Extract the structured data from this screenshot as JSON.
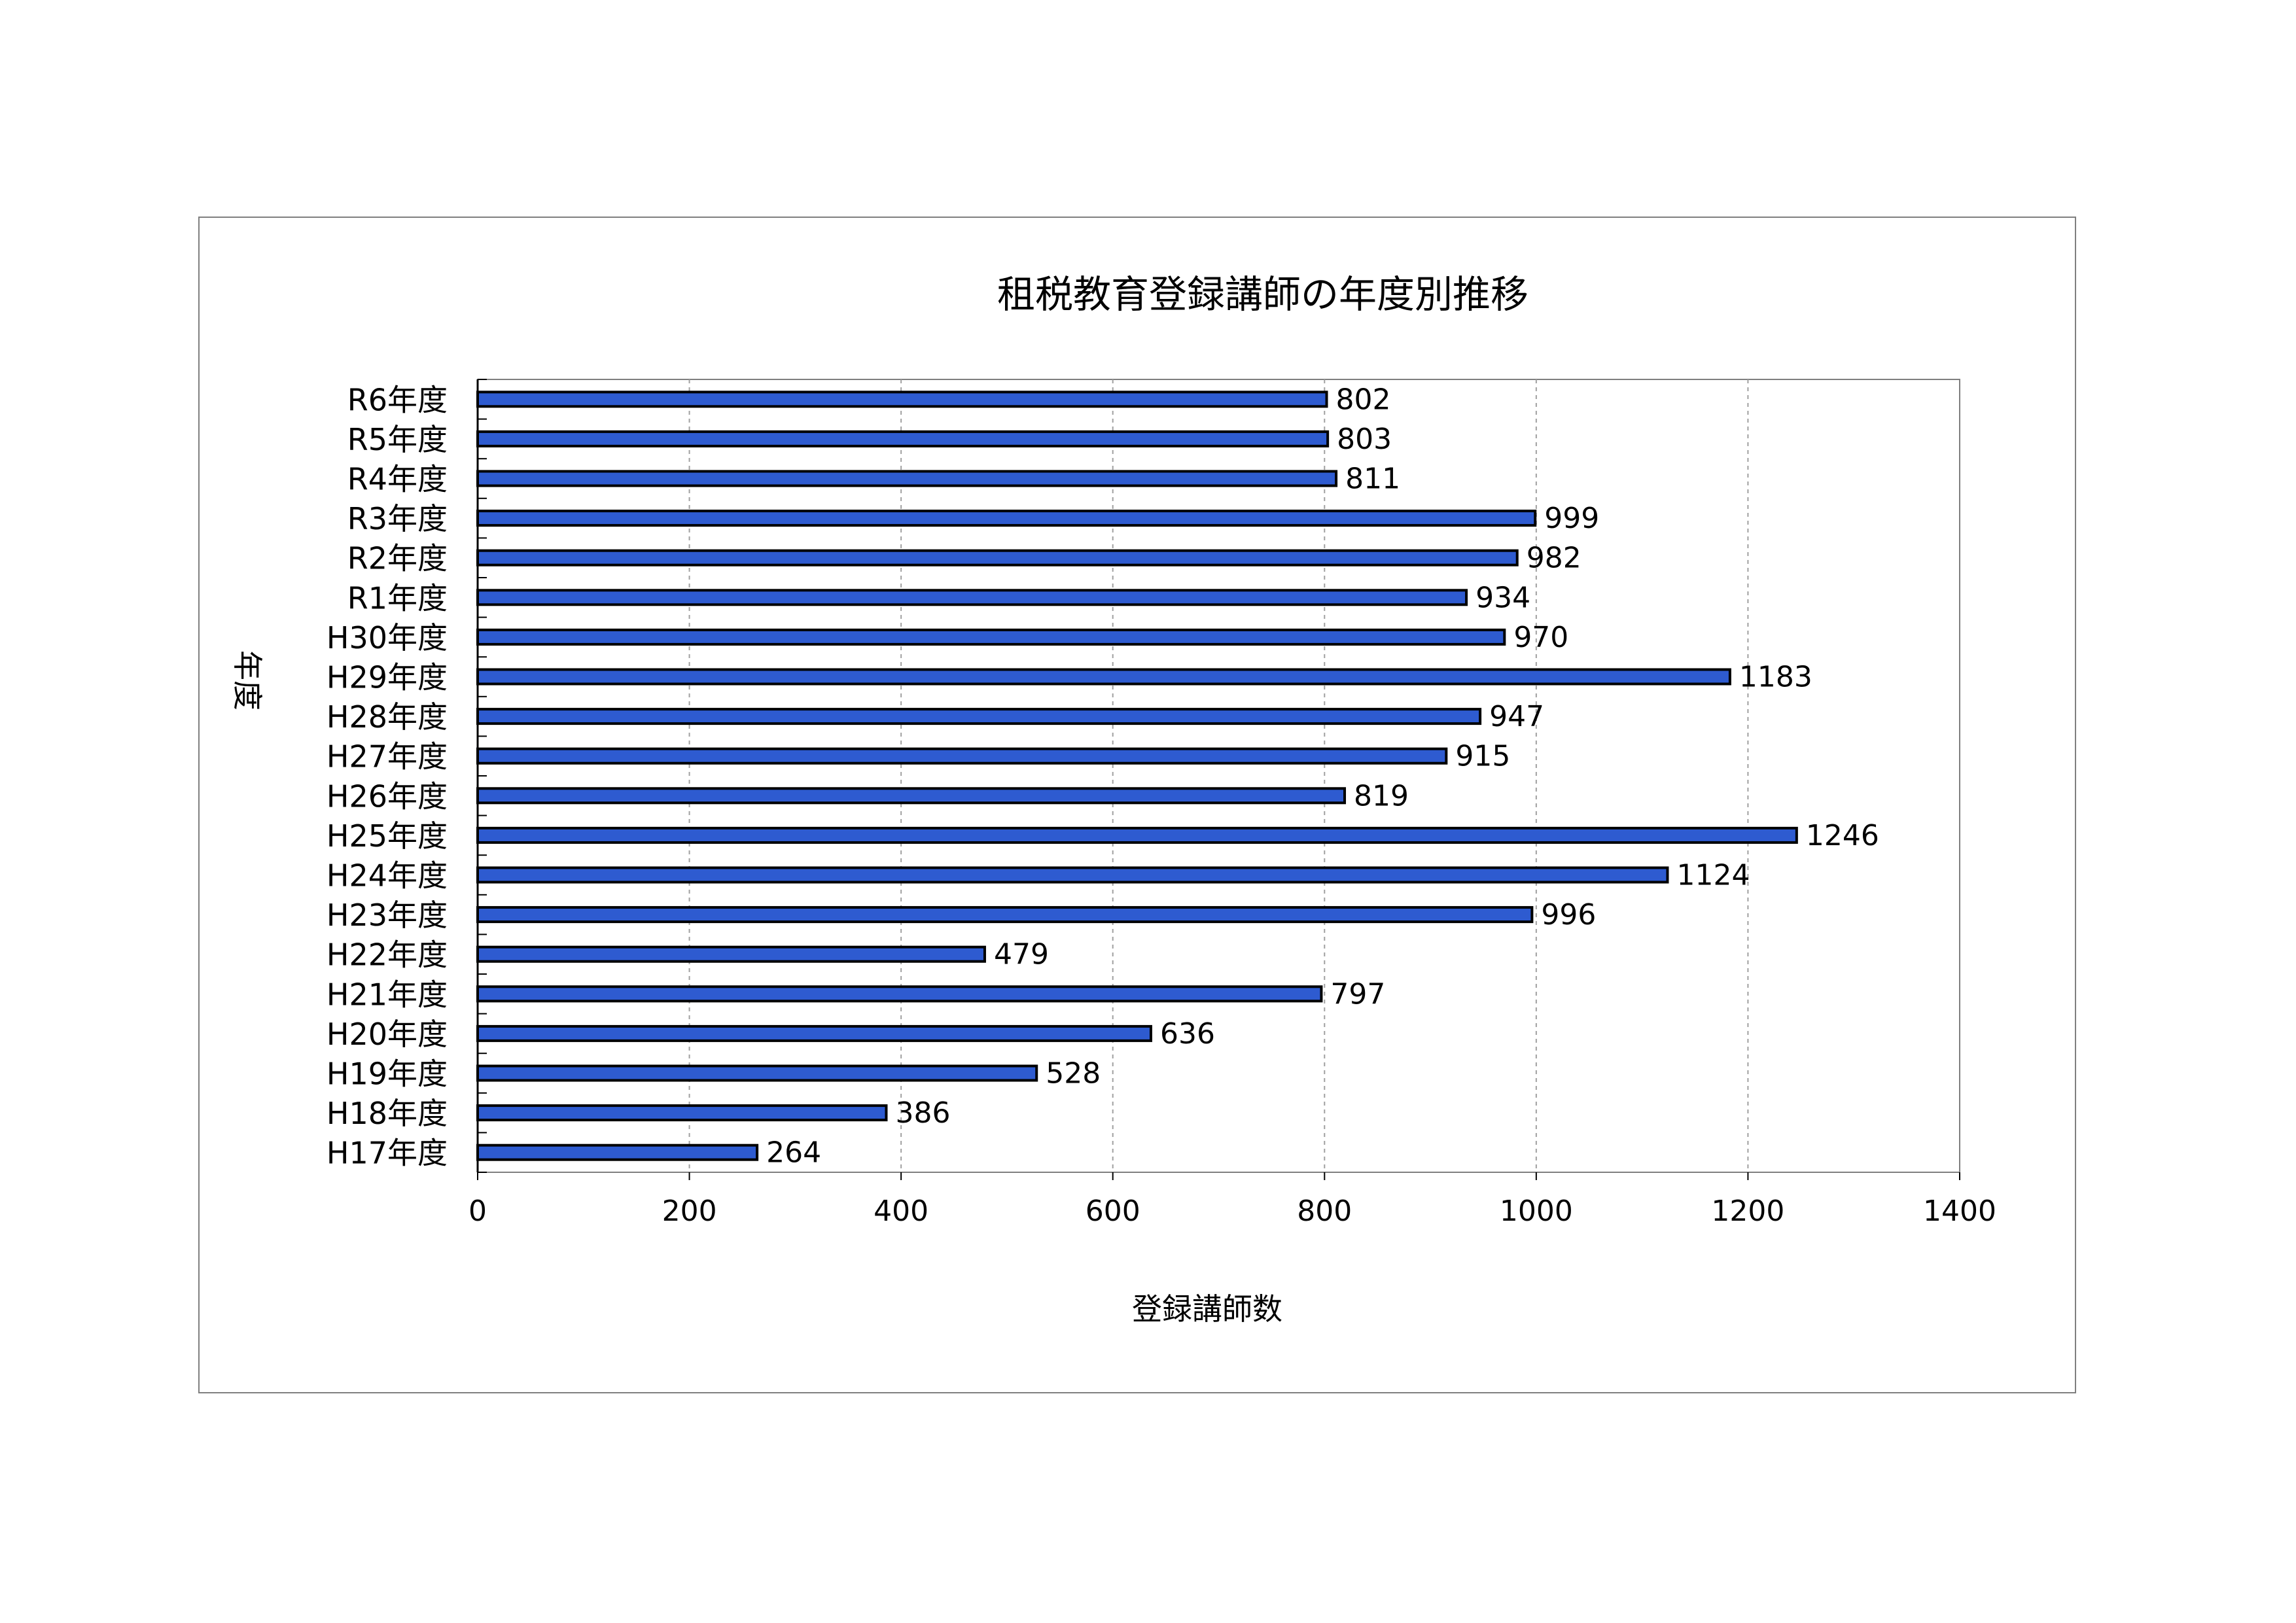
{
  "chart_data": {
    "type": "bar",
    "orientation": "horizontal",
    "title": "租税教育登録講師の年度別推移",
    "xlabel": "登録講師数",
    "ylabel": "年度",
    "xlim": [
      0,
      1400
    ],
    "xticks": [
      "0",
      "200",
      "400",
      "600",
      "800",
      "1000",
      "1200",
      "1400"
    ],
    "categories": [
      "R6年度",
      "R5年度",
      "R4年度",
      "R3年度",
      "R2年度",
      "R1年度",
      "H30年度",
      "H29年度",
      "H28年度",
      "H27年度",
      "H26年度",
      "H25年度",
      "H24年度",
      "H23年度",
      "H22年度",
      "H21年度",
      "H20年度",
      "H19年度",
      "H18年度",
      "H17年度"
    ],
    "values": [
      802,
      803,
      811,
      999,
      982,
      934,
      970,
      1183,
      947,
      915,
      819,
      1246,
      1124,
      996,
      479,
      797,
      636,
      528,
      386,
      264
    ],
    "data_labels": [
      "802",
      "803",
      "811",
      "999",
      "982",
      "934",
      "970",
      "1183",
      "947",
      "915",
      "819",
      "1246",
      "1124",
      "996",
      "479",
      "797",
      "636",
      "528",
      "386",
      "264"
    ],
    "grid": "vertical-dashed",
    "legend": "none",
    "colors": {
      "bar": "#2e5bd0",
      "bar_border": "#000000",
      "grid": "#a0a0a0",
      "frame": "#7f7f7f"
    }
  }
}
